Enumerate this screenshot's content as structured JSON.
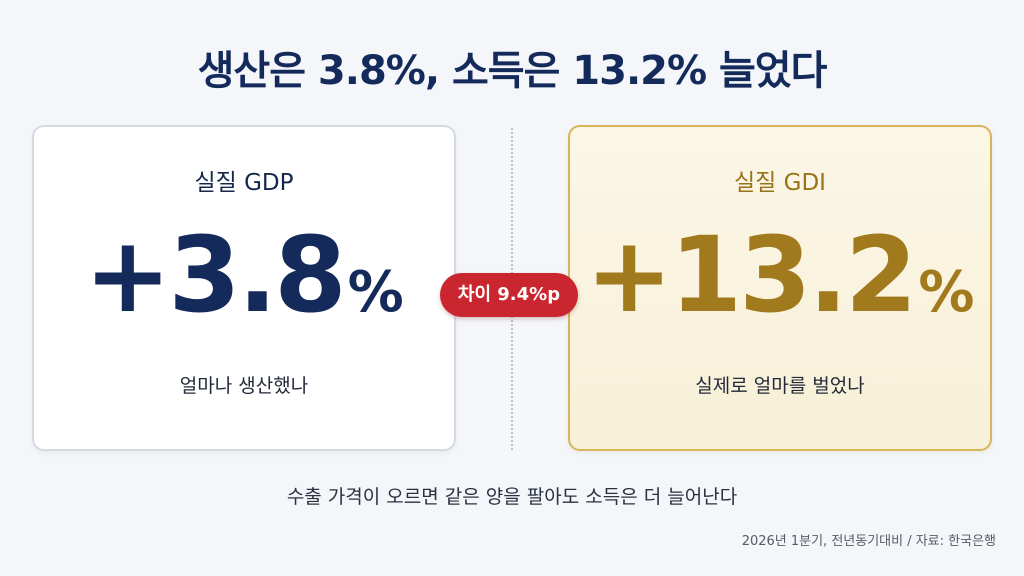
{
  "headline": "생산은 3.8%, 소득은 13.2% 늘었다",
  "cards": {
    "left": {
      "label": "실질 GDP",
      "value": "+3.8",
      "unit": "%",
      "caption": "얼마나 생산했나",
      "color": "#142a5a"
    },
    "right": {
      "label": "실질 GDI",
      "value": "+13.2",
      "unit": "%",
      "caption": "실제로 얼마를 벌었나",
      "color": "#a27a1e"
    }
  },
  "difference_badge": "차이 9.4%p",
  "footnote": "수출 가격이 오르면 같은 양을 팔아도 소득은 더 늘어난다",
  "source": "2026년 1분기, 전년동기대비 / 자료: 한국은행",
  "colors": {
    "badge": "#c9262f",
    "right_border": "#d6b55a"
  }
}
